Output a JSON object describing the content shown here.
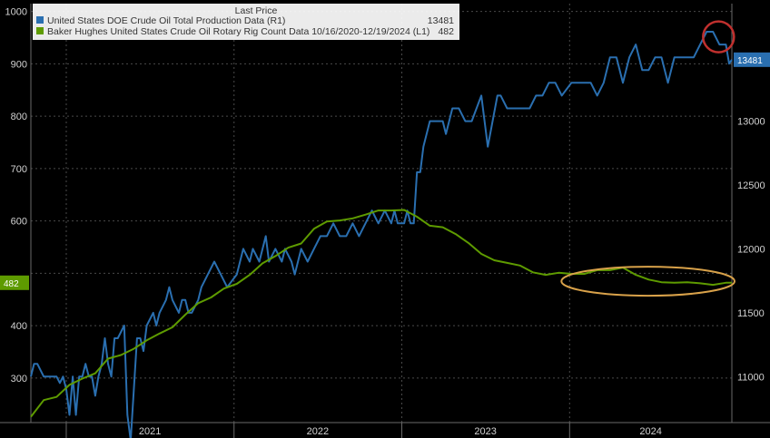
{
  "chart_data": {
    "type": "line",
    "title": "",
    "legend": {
      "title": "Last Price",
      "placement": "top-left",
      "entries": [
        {
          "name": "United States DOE Crude Oil Total Production Data  (R1)",
          "value": "13481",
          "color": "#2a6fb0"
        },
        {
          "name": "Baker Hughes United States Crude Oil Rotary Rig Count Data 10/16/2020-12/19/2024  (L1)",
          "value": "482",
          "color": "#5e9b00"
        }
      ]
    },
    "x_axis": {
      "type": "date",
      "range": [
        "2020-10-16",
        "2024-12-19"
      ],
      "ticks": [
        "2021",
        "2022",
        "2023",
        "2024"
      ]
    },
    "y_left": {
      "label": "",
      "range": [
        215,
        1015
      ],
      "ticks": [
        300,
        400,
        500,
        600,
        700,
        800,
        900,
        1000
      ],
      "tick_labels": [
        "300",
        "400",
        "",
        "600",
        "700",
        "800",
        "900",
        "1000"
      ]
    },
    "y_right": {
      "label": "",
      "range": [
        10640,
        13920
      ],
      "ticks": [
        11000,
        11500,
        12000,
        12500,
        13000
      ],
      "tick_labels": [
        "11000",
        "11500",
        "12000",
        "12500",
        "13000"
      ]
    },
    "grid": true,
    "series": [
      {
        "name": "United States DOE Crude Oil Total Production Data",
        "axis": "right",
        "color": "#2a6fb0",
        "last_value": 13481,
        "x": [
          "2020-10-16",
          "2020-10-23",
          "2020-10-30",
          "2020-11-13",
          "2020-11-27",
          "2020-12-04",
          "2020-12-11",
          "2020-12-18",
          "2020-12-25",
          "2021-01-01",
          "2021-01-08",
          "2021-01-15",
          "2021-01-22",
          "2021-01-29",
          "2021-02-05",
          "2021-02-12",
          "2021-02-19",
          "2021-02-26",
          "2021-03-05",
          "2021-03-12",
          "2021-03-19",
          "2021-03-26",
          "2021-04-02",
          "2021-04-09",
          "2021-04-16",
          "2021-04-23",
          "2021-05-07",
          "2021-05-14",
          "2021-05-21",
          "2021-06-04",
          "2021-06-11",
          "2021-06-18",
          "2021-06-25",
          "2021-07-09",
          "2021-07-16",
          "2021-07-23",
          "2021-08-06",
          "2021-08-13",
          "2021-08-20",
          "2021-09-03",
          "2021-09-10",
          "2021-09-17",
          "2021-09-24",
          "2021-10-01",
          "2021-10-15",
          "2021-10-22",
          "2021-11-05",
          "2021-11-19",
          "2021-12-03",
          "2021-12-17",
          "2022-01-07",
          "2022-01-21",
          "2022-02-04",
          "2022-02-11",
          "2022-02-25",
          "2022-03-11",
          "2022-03-18",
          "2022-04-01",
          "2022-04-15",
          "2022-04-22",
          "2022-05-06",
          "2022-05-13",
          "2022-05-27",
          "2022-06-10",
          "2022-06-24",
          "2022-07-08",
          "2022-07-22",
          "2022-08-05",
          "2022-08-19",
          "2022-09-02",
          "2022-09-16",
          "2022-09-30",
          "2022-10-14",
          "2022-10-28",
          "2022-11-11",
          "2022-11-25",
          "2022-12-09",
          "2022-12-16",
          "2022-12-23",
          "2023-01-06",
          "2023-01-13",
          "2023-01-20",
          "2023-01-27",
          "2023-02-03",
          "2023-02-10",
          "2023-02-17",
          "2023-03-03",
          "2023-03-17",
          "2023-03-31",
          "2023-04-07",
          "2023-04-21",
          "2023-05-05",
          "2023-05-19",
          "2023-06-02",
          "2023-06-23",
          "2023-07-07",
          "2023-07-28",
          "2023-08-04",
          "2023-08-18",
          "2023-08-25",
          "2023-09-01",
          "2023-09-08",
          "2023-09-15",
          "2023-09-22",
          "2023-10-06",
          "2023-10-20",
          "2023-11-03",
          "2023-11-17",
          "2023-12-01",
          "2023-12-15",
          "2024-01-05",
          "2024-01-19",
          "2024-02-02",
          "2024-02-16",
          "2024-03-01",
          "2024-03-15",
          "2024-03-29",
          "2024-04-12",
          "2024-04-26",
          "2024-05-10",
          "2024-05-24",
          "2024-06-07",
          "2024-06-21",
          "2024-07-05",
          "2024-07-19",
          "2024-08-02",
          "2024-08-16",
          "2024-08-30",
          "2024-09-13",
          "2024-09-27",
          "2024-10-11",
          "2024-10-25",
          "2024-11-08",
          "2024-11-22",
          "2024-12-06",
          "2024-12-13",
          "2024-12-19"
        ],
        "values": [
          11000,
          11100,
          11100,
          11000,
          11000,
          11000,
          11000,
          10950,
          11000,
          10900,
          10700,
          11000,
          10700,
          11000,
          11000,
          11100,
          11000,
          11000,
          10850,
          11000,
          11100,
          11300,
          11100,
          11000,
          11300,
          11300,
          11400,
          10700,
          10500,
          11300,
          11300,
          11200,
          11400,
          11500,
          11400,
          11500,
          11600,
          11700,
          11600,
          11500,
          11600,
          11600,
          11500,
          11500,
          11600,
          11700,
          11800,
          11900,
          11800,
          11700,
          11800,
          12000,
          11900,
          12000,
          11900,
          12100,
          11900,
          12000,
          11900,
          12000,
          11900,
          11800,
          12000,
          11900,
          12000,
          12100,
          12100,
          12200,
          12100,
          12100,
          12200,
          12100,
          12200,
          12300,
          12200,
          12300,
          12200,
          12300,
          12200,
          12200,
          12300,
          12200,
          12200,
          12600,
          12600,
          12800,
          13000,
          13000,
          13000,
          12900,
          13100,
          13100,
          13000,
          13000,
          13200,
          12800,
          13200,
          13200,
          13100,
          13100,
          13100,
          13100,
          13100,
          13100,
          13100,
          13200,
          13200,
          13300,
          13300,
          13200,
          13300,
          13300,
          13300,
          13300,
          13200,
          13300,
          13500,
          13500,
          13300,
          13500,
          13600,
          13400,
          13400,
          13500,
          13500,
          13300,
          13500,
          13500,
          13500,
          13500,
          13600,
          13700,
          13700,
          13600,
          13600,
          13450,
          13481
        ]
      },
      {
        "name": "Baker Hughes United States Crude Oil Rotary Rig Count Data",
        "axis": "left",
        "color": "#5e9b00",
        "last_value": 482,
        "x": [
          "2020-10-16",
          "2020-11-13",
          "2020-12-11",
          "2021-01-08",
          "2021-02-05",
          "2021-03-05",
          "2021-04-02",
          "2021-04-30",
          "2021-05-28",
          "2021-06-25",
          "2021-07-23",
          "2021-08-20",
          "2021-09-17",
          "2021-10-15",
          "2021-11-12",
          "2021-12-10",
          "2022-01-07",
          "2022-02-04",
          "2022-03-04",
          "2022-04-01",
          "2022-04-29",
          "2022-05-27",
          "2022-06-24",
          "2022-07-22",
          "2022-08-19",
          "2022-09-16",
          "2022-10-14",
          "2022-11-11",
          "2022-12-09",
          "2023-01-06",
          "2023-02-03",
          "2023-03-03",
          "2023-03-31",
          "2023-04-28",
          "2023-05-26",
          "2023-06-23",
          "2023-07-21",
          "2023-08-18",
          "2023-09-15",
          "2023-10-13",
          "2023-11-10",
          "2023-12-08",
          "2024-01-05",
          "2024-02-02",
          "2024-03-01",
          "2024-03-29",
          "2024-04-26",
          "2024-05-24",
          "2024-06-21",
          "2024-07-19",
          "2024-08-16",
          "2024-09-13",
          "2024-10-11",
          "2024-11-08",
          "2024-12-06",
          "2024-12-19"
        ],
        "values": [
          226,
          258,
          264,
          287,
          299,
          309,
          337,
          344,
          356,
          372,
          385,
          397,
          421,
          443,
          454,
          471,
          480,
          497,
          519,
          533,
          549,
          557,
          585,
          599,
          601,
          605,
          612,
          620,
          620,
          621,
          608,
          591,
          588,
          575,
          558,
          537,
          525,
          520,
          515,
          502,
          497,
          501,
          499,
          499,
          506,
          506,
          511,
          497,
          488,
          483,
          482,
          483,
          481,
          478,
          482,
          482
        ]
      }
    ],
    "annotations": [
      {
        "type": "ellipse",
        "color": "#d9a24a",
        "label": ""
      },
      {
        "type": "circle",
        "color": "#c0302e",
        "label": ""
      }
    ],
    "axis_badges": {
      "left": {
        "text": "482",
        "color": "#5e9b00"
      },
      "right": {
        "text": "13481",
        "color": "#2a6fb0"
      }
    }
  }
}
